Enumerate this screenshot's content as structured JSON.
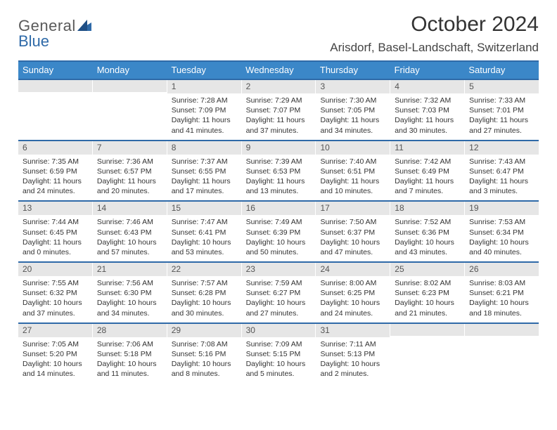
{
  "brand": {
    "general": "General",
    "blue": "Blue"
  },
  "title": {
    "month": "October 2024",
    "location": "Arisdorf, Basel-Landschaft, Switzerland"
  },
  "colors": {
    "accent": "#3b87c8",
    "rule": "#2f6aa8",
    "daynum_bg": "#e6e6e6"
  },
  "dayNames": [
    "Sunday",
    "Monday",
    "Tuesday",
    "Wednesday",
    "Thursday",
    "Friday",
    "Saturday"
  ],
  "weeks": [
    [
      null,
      null,
      {
        "n": "1",
        "sr": "Sunrise: 7:28 AM",
        "ss": "Sunset: 7:09 PM",
        "dl": "Daylight: 11 hours and 41 minutes."
      },
      {
        "n": "2",
        "sr": "Sunrise: 7:29 AM",
        "ss": "Sunset: 7:07 PM",
        "dl": "Daylight: 11 hours and 37 minutes."
      },
      {
        "n": "3",
        "sr": "Sunrise: 7:30 AM",
        "ss": "Sunset: 7:05 PM",
        "dl": "Daylight: 11 hours and 34 minutes."
      },
      {
        "n": "4",
        "sr": "Sunrise: 7:32 AM",
        "ss": "Sunset: 7:03 PM",
        "dl": "Daylight: 11 hours and 30 minutes."
      },
      {
        "n": "5",
        "sr": "Sunrise: 7:33 AM",
        "ss": "Sunset: 7:01 PM",
        "dl": "Daylight: 11 hours and 27 minutes."
      }
    ],
    [
      {
        "n": "6",
        "sr": "Sunrise: 7:35 AM",
        "ss": "Sunset: 6:59 PM",
        "dl": "Daylight: 11 hours and 24 minutes."
      },
      {
        "n": "7",
        "sr": "Sunrise: 7:36 AM",
        "ss": "Sunset: 6:57 PM",
        "dl": "Daylight: 11 hours and 20 minutes."
      },
      {
        "n": "8",
        "sr": "Sunrise: 7:37 AM",
        "ss": "Sunset: 6:55 PM",
        "dl": "Daylight: 11 hours and 17 minutes."
      },
      {
        "n": "9",
        "sr": "Sunrise: 7:39 AM",
        "ss": "Sunset: 6:53 PM",
        "dl": "Daylight: 11 hours and 13 minutes."
      },
      {
        "n": "10",
        "sr": "Sunrise: 7:40 AM",
        "ss": "Sunset: 6:51 PM",
        "dl": "Daylight: 11 hours and 10 minutes."
      },
      {
        "n": "11",
        "sr": "Sunrise: 7:42 AM",
        "ss": "Sunset: 6:49 PM",
        "dl": "Daylight: 11 hours and 7 minutes."
      },
      {
        "n": "12",
        "sr": "Sunrise: 7:43 AM",
        "ss": "Sunset: 6:47 PM",
        "dl": "Daylight: 11 hours and 3 minutes."
      }
    ],
    [
      {
        "n": "13",
        "sr": "Sunrise: 7:44 AM",
        "ss": "Sunset: 6:45 PM",
        "dl": "Daylight: 11 hours and 0 minutes."
      },
      {
        "n": "14",
        "sr": "Sunrise: 7:46 AM",
        "ss": "Sunset: 6:43 PM",
        "dl": "Daylight: 10 hours and 57 minutes."
      },
      {
        "n": "15",
        "sr": "Sunrise: 7:47 AM",
        "ss": "Sunset: 6:41 PM",
        "dl": "Daylight: 10 hours and 53 minutes."
      },
      {
        "n": "16",
        "sr": "Sunrise: 7:49 AM",
        "ss": "Sunset: 6:39 PM",
        "dl": "Daylight: 10 hours and 50 minutes."
      },
      {
        "n": "17",
        "sr": "Sunrise: 7:50 AM",
        "ss": "Sunset: 6:37 PM",
        "dl": "Daylight: 10 hours and 47 minutes."
      },
      {
        "n": "18",
        "sr": "Sunrise: 7:52 AM",
        "ss": "Sunset: 6:36 PM",
        "dl": "Daylight: 10 hours and 43 minutes."
      },
      {
        "n": "19",
        "sr": "Sunrise: 7:53 AM",
        "ss": "Sunset: 6:34 PM",
        "dl": "Daylight: 10 hours and 40 minutes."
      }
    ],
    [
      {
        "n": "20",
        "sr": "Sunrise: 7:55 AM",
        "ss": "Sunset: 6:32 PM",
        "dl": "Daylight: 10 hours and 37 minutes."
      },
      {
        "n": "21",
        "sr": "Sunrise: 7:56 AM",
        "ss": "Sunset: 6:30 PM",
        "dl": "Daylight: 10 hours and 34 minutes."
      },
      {
        "n": "22",
        "sr": "Sunrise: 7:57 AM",
        "ss": "Sunset: 6:28 PM",
        "dl": "Daylight: 10 hours and 30 minutes."
      },
      {
        "n": "23",
        "sr": "Sunrise: 7:59 AM",
        "ss": "Sunset: 6:27 PM",
        "dl": "Daylight: 10 hours and 27 minutes."
      },
      {
        "n": "24",
        "sr": "Sunrise: 8:00 AM",
        "ss": "Sunset: 6:25 PM",
        "dl": "Daylight: 10 hours and 24 minutes."
      },
      {
        "n": "25",
        "sr": "Sunrise: 8:02 AM",
        "ss": "Sunset: 6:23 PM",
        "dl": "Daylight: 10 hours and 21 minutes."
      },
      {
        "n": "26",
        "sr": "Sunrise: 8:03 AM",
        "ss": "Sunset: 6:21 PM",
        "dl": "Daylight: 10 hours and 18 minutes."
      }
    ],
    [
      {
        "n": "27",
        "sr": "Sunrise: 7:05 AM",
        "ss": "Sunset: 5:20 PM",
        "dl": "Daylight: 10 hours and 14 minutes."
      },
      {
        "n": "28",
        "sr": "Sunrise: 7:06 AM",
        "ss": "Sunset: 5:18 PM",
        "dl": "Daylight: 10 hours and 11 minutes."
      },
      {
        "n": "29",
        "sr": "Sunrise: 7:08 AM",
        "ss": "Sunset: 5:16 PM",
        "dl": "Daylight: 10 hours and 8 minutes."
      },
      {
        "n": "30",
        "sr": "Sunrise: 7:09 AM",
        "ss": "Sunset: 5:15 PM",
        "dl": "Daylight: 10 hours and 5 minutes."
      },
      {
        "n": "31",
        "sr": "Sunrise: 7:11 AM",
        "ss": "Sunset: 5:13 PM",
        "dl": "Daylight: 10 hours and 2 minutes."
      },
      null,
      null
    ]
  ]
}
